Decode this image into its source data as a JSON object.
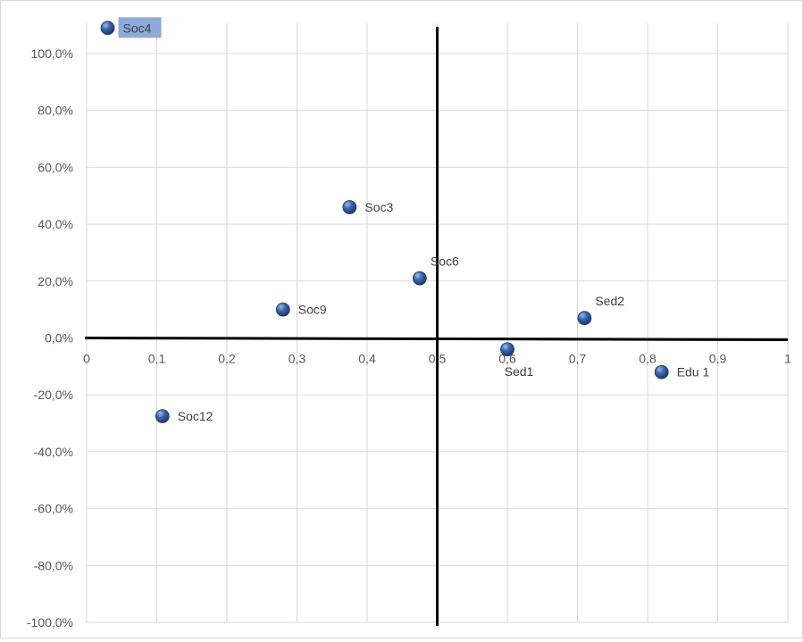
{
  "chart_data": {
    "type": "scatter",
    "title": "",
    "xlabel": "",
    "ylabel": "",
    "xlim": [
      0,
      1
    ],
    "ylim": [
      -1.0,
      1.0
    ],
    "x_ticks": [
      0,
      0.1,
      0.2,
      0.3,
      0.4,
      0.5,
      0.6,
      0.7,
      0.8,
      0.9,
      1
    ],
    "x_tick_labels": [
      "0",
      "0,1",
      "0,2",
      "0,3",
      "0,4",
      "0,5",
      "0,6",
      "0,7",
      "0,8",
      "0,9",
      "1"
    ],
    "y_ticks": [
      1.0,
      0.8,
      0.6,
      0.4,
      0.2,
      0.0,
      -0.2,
      -0.4,
      -0.6,
      -0.8,
      -1.0
    ],
    "y_tick_labels": [
      "100,0%",
      "80,0%",
      "60,0%",
      "40,0%",
      "20,0%",
      "0,0%",
      "-20,0%",
      "-40,0%",
      "-60,0%",
      "-80,0%",
      "-100,0%"
    ],
    "grid": true,
    "crosshair": {
      "x": 0.5,
      "y": 0.0
    },
    "point_color": "#2f5597",
    "axis_color": "#000000",
    "grid_color": "#d9d9d9",
    "label_highlight_color": "#8eaadb",
    "series": [
      {
        "points": [
          {
            "label": "Soc4",
            "x": 0.03,
            "y": 1.09,
            "label_position": "right",
            "highlighted": true
          },
          {
            "label": "Soc3",
            "x": 0.375,
            "y": 0.46,
            "label_position": "right"
          },
          {
            "label": "Soc6",
            "x": 0.475,
            "y": 0.21,
            "label_position": "above-right"
          },
          {
            "label": "Soc9",
            "x": 0.28,
            "y": 0.1,
            "label_position": "right"
          },
          {
            "label": "Sed2",
            "x": 0.71,
            "y": 0.07,
            "label_position": "above-right"
          },
          {
            "label": "Sed1",
            "x": 0.6,
            "y": -0.04,
            "label_position": "below"
          },
          {
            "label": "Edu 1",
            "x": 0.82,
            "y": -0.12,
            "label_position": "right"
          },
          {
            "label": "Soc12",
            "x": 0.108,
            "y": -0.275,
            "label_position": "right"
          }
        ]
      }
    ]
  }
}
